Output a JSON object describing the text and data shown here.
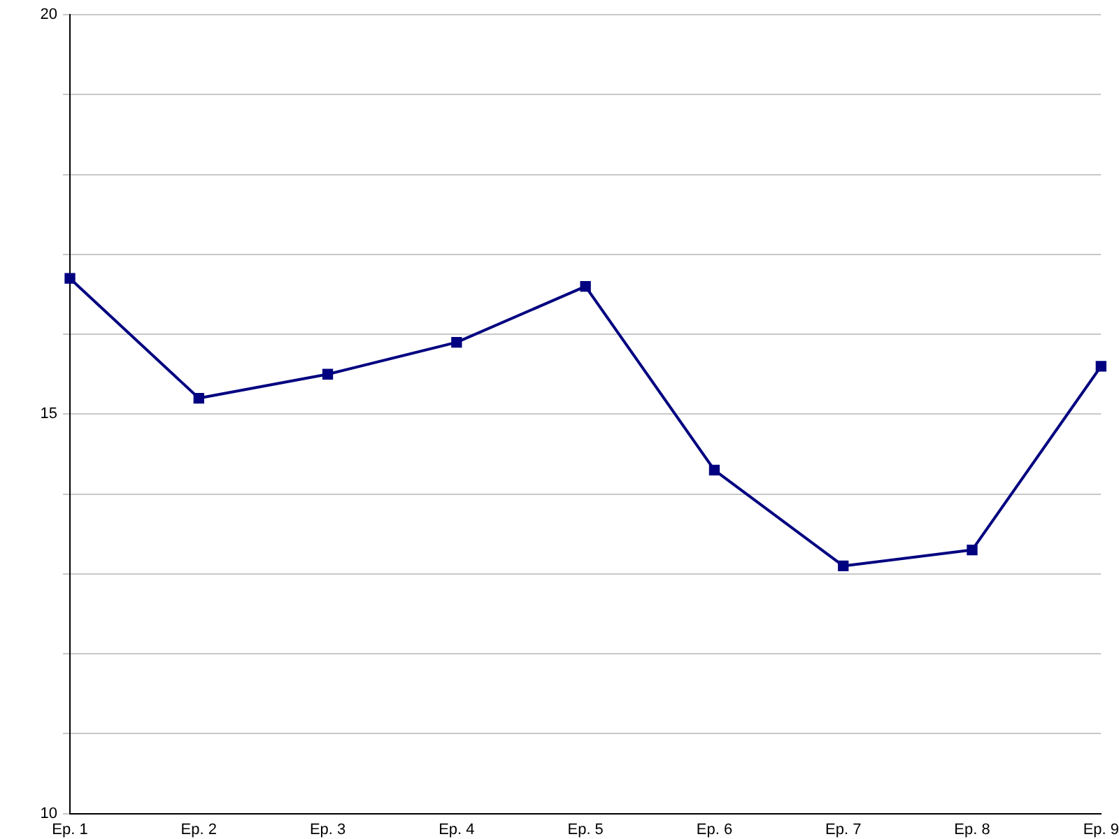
{
  "chart_data": {
    "type": "line",
    "categories": [
      "Ep. 1",
      "Ep. 2",
      "Ep. 3",
      "Ep. 4",
      "Ep. 5",
      "Ep. 6",
      "Ep. 7",
      "Ep. 8",
      "Ep. 9"
    ],
    "series": [
      {
        "color": "#000080",
        "values": [
          16.7,
          15.2,
          15.5,
          15.9,
          16.6,
          14.3,
          13.1,
          13.3,
          15.6
        ]
      }
    ],
    "ylim": [
      10,
      20
    ],
    "yticks": [
      10,
      {
        "value": 11,
        "label": null
      },
      {
        "value": 12,
        "label": null
      },
      {
        "value": 13,
        "label": null
      },
      {
        "value": 14,
        "label": null
      },
      15,
      {
        "value": 16,
        "label": null
      },
      {
        "value": 17,
        "label": null
      },
      {
        "value": 18,
        "label": null
      },
      {
        "value": 19,
        "label": null
      },
      20
    ],
    "grid": "y",
    "legend": false,
    "marker": "square",
    "line_style": "solid"
  }
}
